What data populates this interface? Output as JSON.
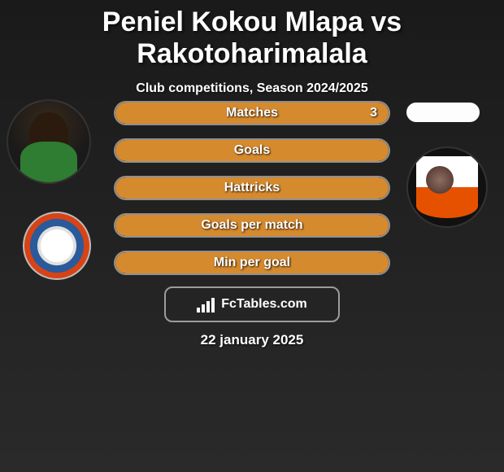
{
  "title": "Peniel Kokou Mlapa vs Rakotoharimalala",
  "subtitle": "Club competitions, Season 2024/2025",
  "date_text": "22 january 2025",
  "branding_text": "FcTables.com",
  "colors": {
    "fill_orange": "#d68a2e",
    "border_white": "rgba(255,255,255,0.5)",
    "title_color": "#ffffff"
  },
  "stats": [
    {
      "label": "Matches",
      "left_value": "3",
      "fill_pct": 100
    },
    {
      "label": "Goals",
      "left_value": "",
      "fill_pct": 100
    },
    {
      "label": "Hattricks",
      "left_value": "",
      "fill_pct": 100
    },
    {
      "label": "Goals per match",
      "left_value": "",
      "fill_pct": 100
    },
    {
      "label": "Min per goal",
      "left_value": "",
      "fill_pct": 100
    }
  ]
}
